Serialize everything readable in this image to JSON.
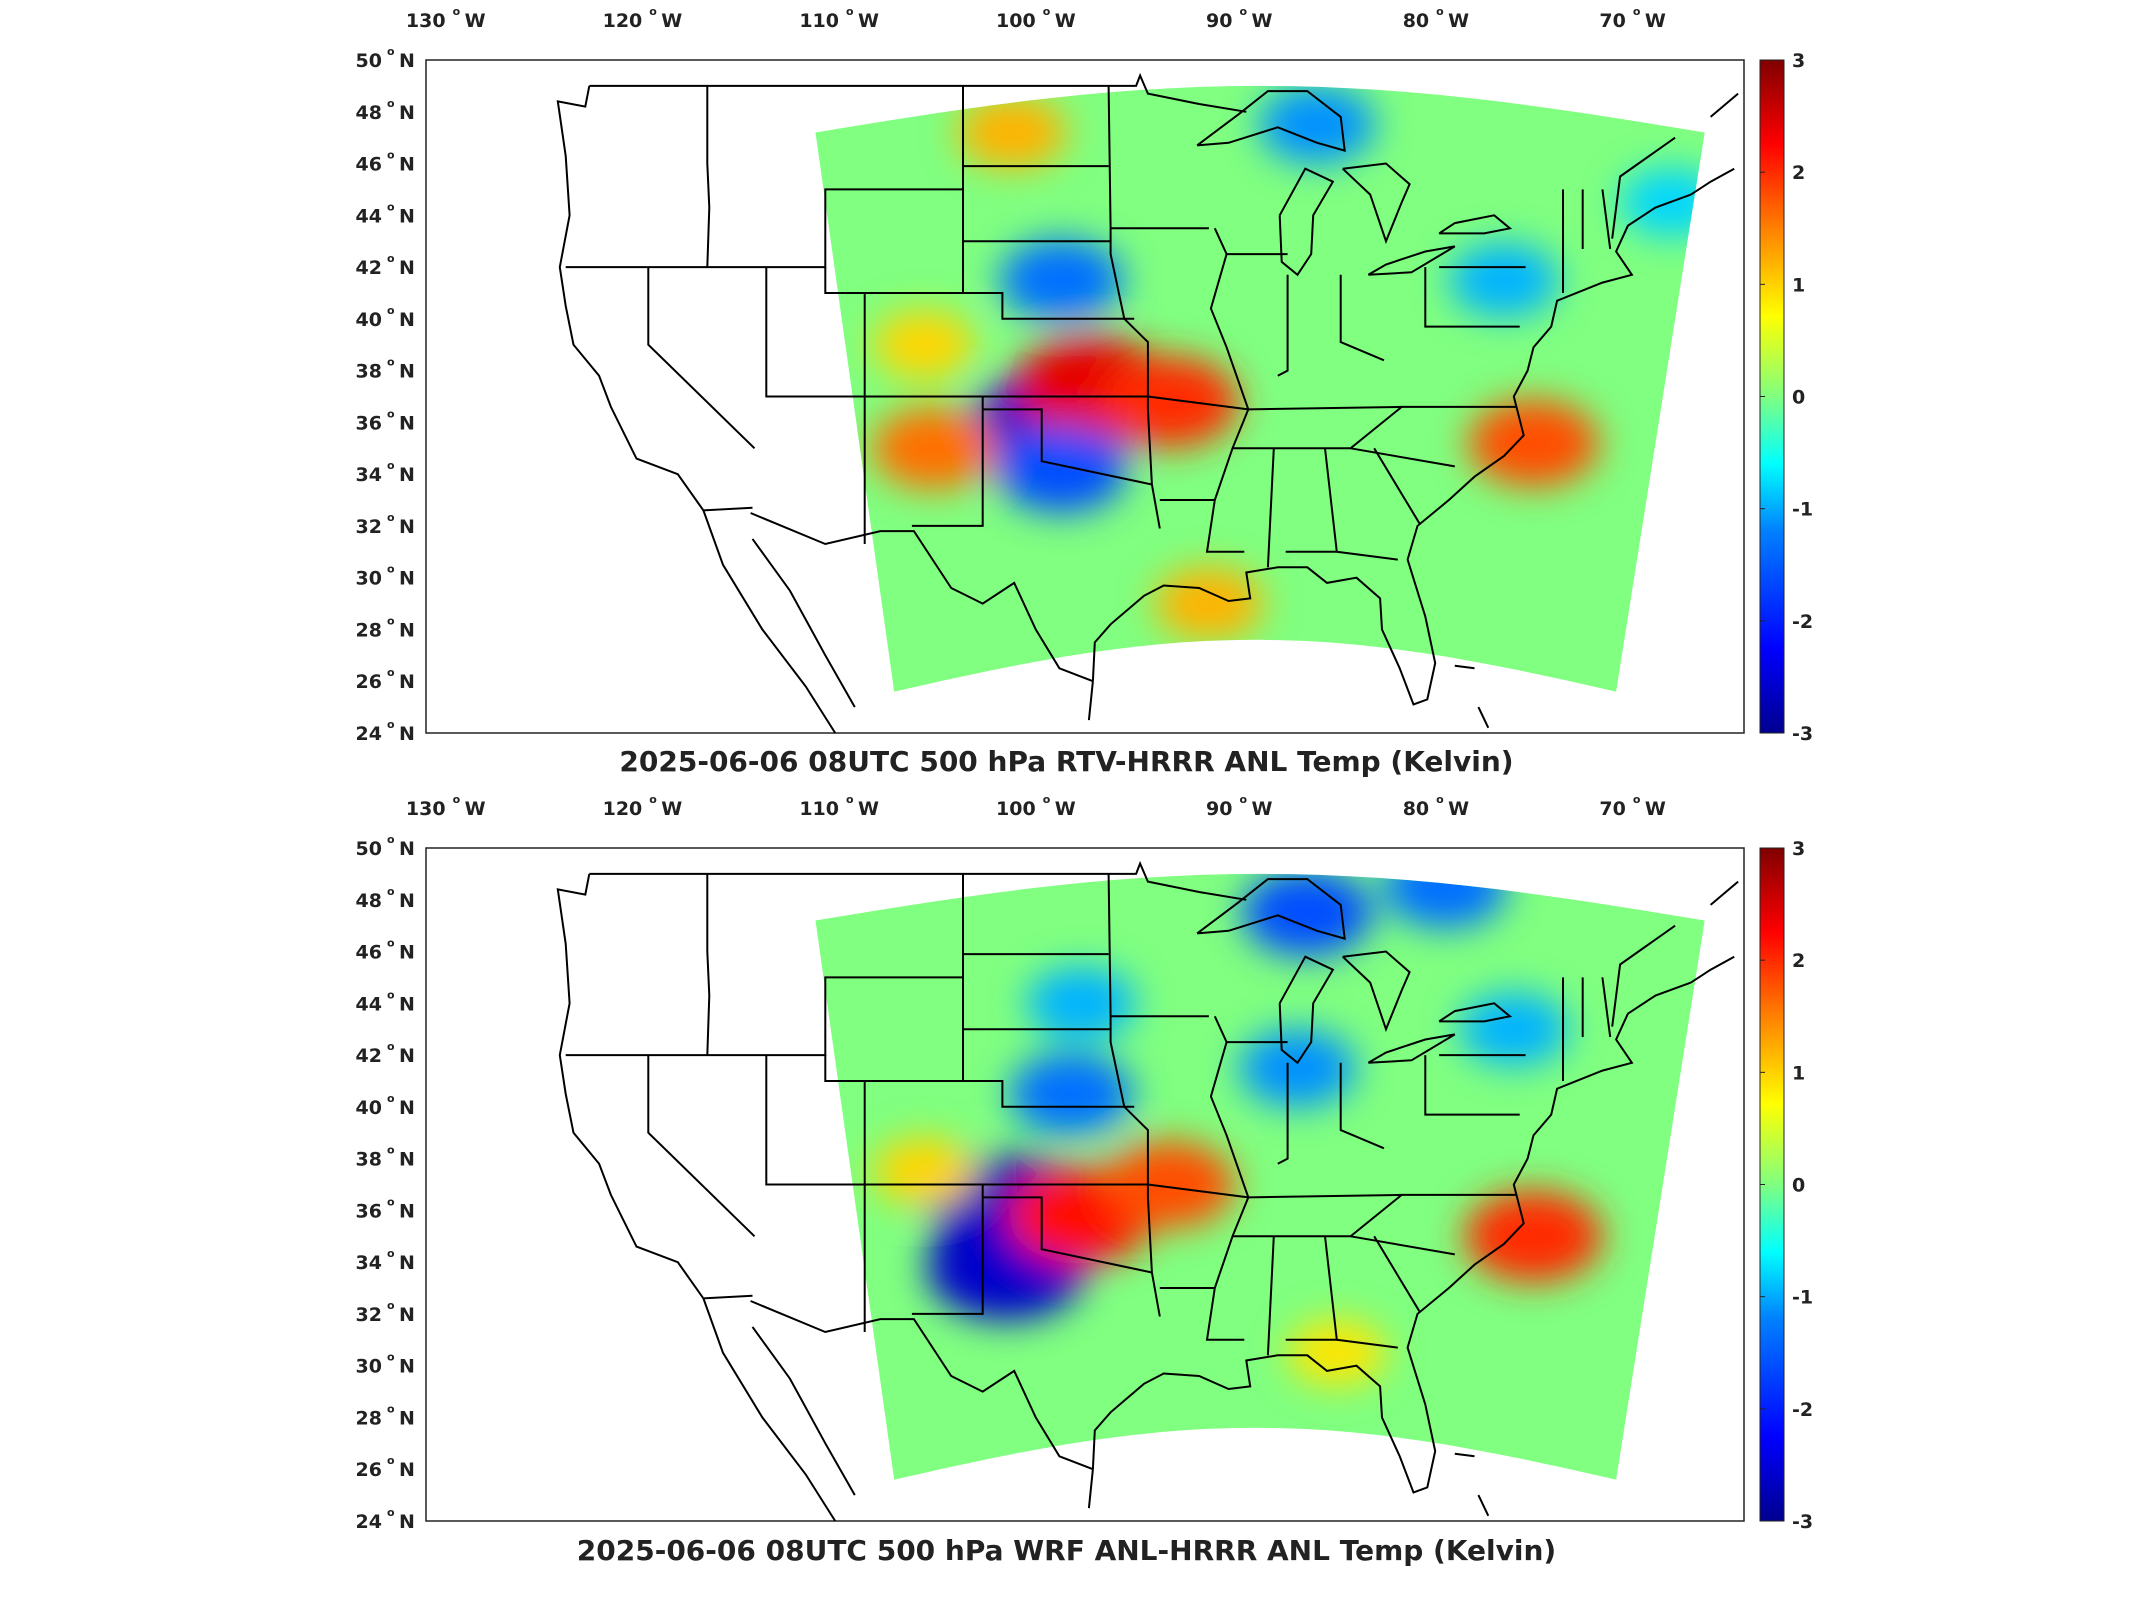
{
  "colors": {
    "land_outline": "#000000",
    "background": "#ffffff",
    "colormap": [
      "#00008f",
      "#0000ff",
      "#0080ff",
      "#00ffff",
      "#80ff80",
      "#ffff00",
      "#ff8000",
      "#ff0000",
      "#800000"
    ]
  },
  "longitude_labels": [
    {
      "num": "130",
      "hemi": "W"
    },
    {
      "num": "120",
      "hemi": "W"
    },
    {
      "num": "110",
      "hemi": "W"
    },
    {
      "num": "100",
      "hemi": "W"
    },
    {
      "num": "90",
      "hemi": "W"
    },
    {
      "num": "80",
      "hemi": "W"
    },
    {
      "num": "70",
      "hemi": "W"
    }
  ],
  "latitude_labels": [
    {
      "num": "50",
      "hemi": "N"
    },
    {
      "num": "48",
      "hemi": "N"
    },
    {
      "num": "46",
      "hemi": "N"
    },
    {
      "num": "44",
      "hemi": "N"
    },
    {
      "num": "42",
      "hemi": "N"
    },
    {
      "num": "40",
      "hemi": "N"
    },
    {
      "num": "38",
      "hemi": "N"
    },
    {
      "num": "36",
      "hemi": "N"
    },
    {
      "num": "34",
      "hemi": "N"
    },
    {
      "num": "32",
      "hemi": "N"
    },
    {
      "num": "30",
      "hemi": "N"
    },
    {
      "num": "28",
      "hemi": "N"
    },
    {
      "num": "26",
      "hemi": "N"
    },
    {
      "num": "24",
      "hemi": "N"
    }
  ],
  "colorbar_ticks": [
    "3",
    "2",
    "1",
    "0",
    "-1",
    "-2",
    "-3"
  ],
  "panels": [
    {
      "title": "2025-06-06 08UTC 500 hPa RTV-HRRR ANL Temp (Kelvin)",
      "anomalies": [
        {
          "lon": -99.5,
          "lat": 36.0,
          "value": -2.6
        },
        {
          "lon": -97.5,
          "lat": 37.4,
          "value": 2.4
        },
        {
          "lon": -93.5,
          "lat": 36.8,
          "value": 2.0
        },
        {
          "lon": -105.5,
          "lat": 35.0,
          "value": 1.6
        },
        {
          "lon": -99.0,
          "lat": 34.2,
          "value": -1.8
        },
        {
          "lon": -91.5,
          "lat": 29.0,
          "value": 1.2
        },
        {
          "lon": -75.0,
          "lat": 35.2,
          "value": 1.8
        },
        {
          "lon": -86.0,
          "lat": 47.5,
          "value": -1.4
        },
        {
          "lon": -99.0,
          "lat": 41.5,
          "value": -1.6
        },
        {
          "lon": -101.5,
          "lat": 47.2,
          "value": 1.2
        },
        {
          "lon": -76.5,
          "lat": 41.5,
          "value": -1.2
        },
        {
          "lon": -68.0,
          "lat": 44.5,
          "value": -1.0
        },
        {
          "lon": -106.0,
          "lat": 39.0,
          "value": 1.0
        }
      ]
    },
    {
      "title": "2025-06-06 08UTC 500 hPa WRF ANL-HRRR ANL Temp (Kelvin)",
      "anomalies": [
        {
          "lon": -101.5,
          "lat": 36.0,
          "value": -2.7
        },
        {
          "lon": -101.8,
          "lat": 33.8,
          "value": -2.6
        },
        {
          "lon": -98.0,
          "lat": 35.8,
          "value": 2.2
        },
        {
          "lon": -93.5,
          "lat": 37.0,
          "value": 1.8
        },
        {
          "lon": -75.0,
          "lat": 35.0,
          "value": 2.0
        },
        {
          "lon": -79.5,
          "lat": 48.5,
          "value": -1.6
        },
        {
          "lon": -86.5,
          "lat": 47.5,
          "value": -1.8
        },
        {
          "lon": -87.0,
          "lat": 41.5,
          "value": -1.4
        },
        {
          "lon": -98.5,
          "lat": 40.5,
          "value": -1.6
        },
        {
          "lon": -98.0,
          "lat": 44.0,
          "value": -1.2
        },
        {
          "lon": -106.0,
          "lat": 37.5,
          "value": 1.0
        },
        {
          "lon": -76.0,
          "lat": 43.0,
          "value": -1.2
        },
        {
          "lon": -85.0,
          "lat": 30.5,
          "value": 0.9
        }
      ]
    }
  ]
}
